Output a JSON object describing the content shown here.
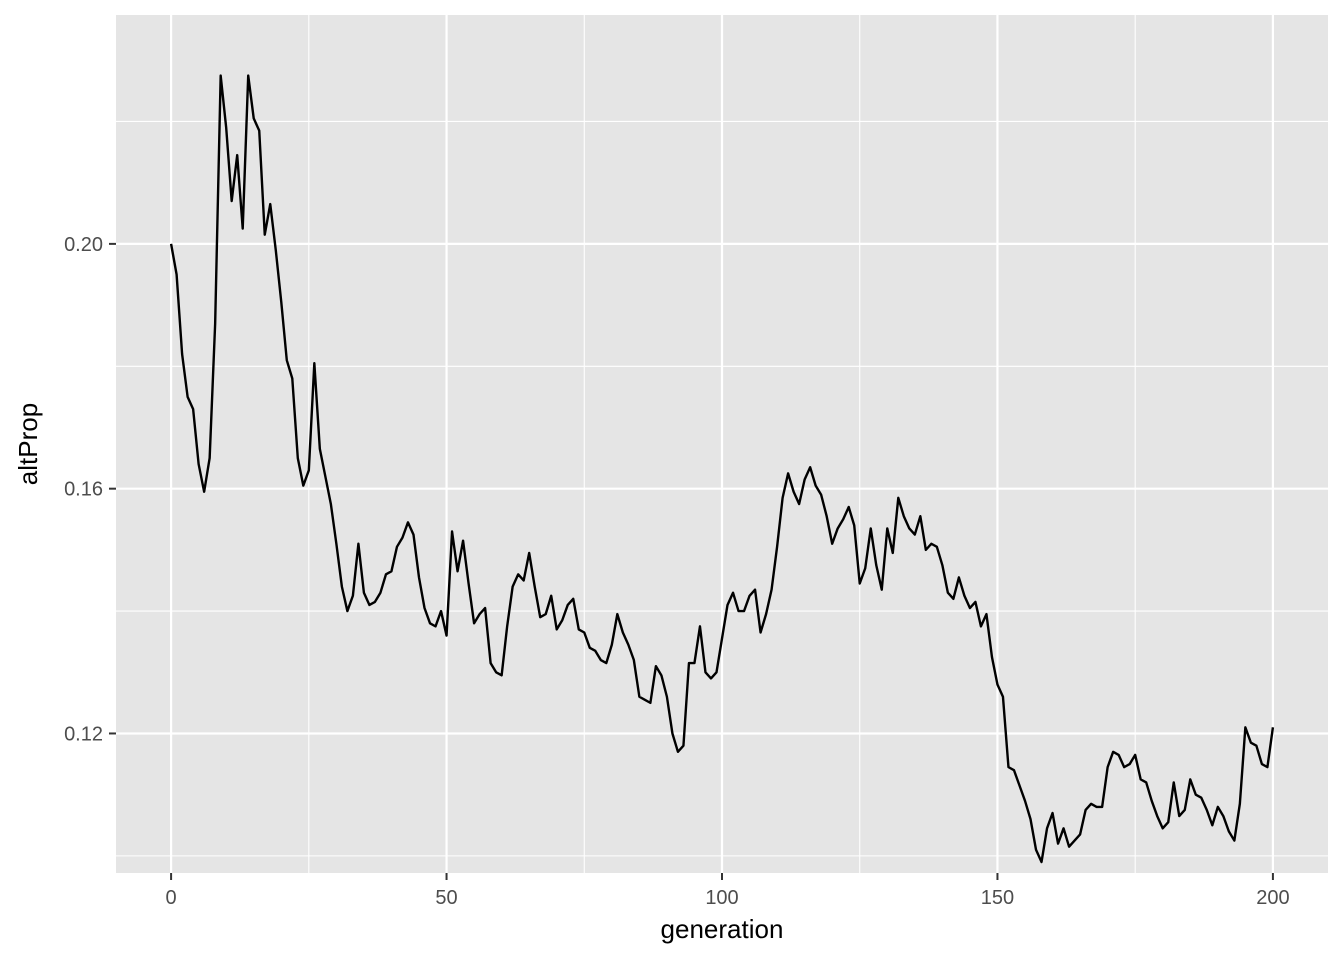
{
  "chart_data": {
    "type": "line",
    "title": "",
    "xlabel": "generation",
    "ylabel": "altProp",
    "xlim": [
      -10,
      210
    ],
    "ylim": [
      0.0972,
      0.2374
    ],
    "x_ticks": [
      0,
      50,
      100,
      150,
      200
    ],
    "x_tick_labels": [
      "0",
      "50",
      "100",
      "150",
      "200"
    ],
    "y_ticks": [
      0.12,
      0.16,
      0.2
    ],
    "y_tick_labels": [
      "0.12",
      "0.16",
      "0.20"
    ],
    "grid": true,
    "legend": "none",
    "colors": {
      "panel": "#e5e5e5",
      "grid": "#ffffff",
      "line": "#000000",
      "tick_text": "#4d4d4d",
      "tick_mark": "#333333"
    },
    "series": [
      {
        "values_x": [
          0,
          1,
          2,
          3,
          4,
          5,
          6,
          7,
          8,
          9,
          10,
          11,
          12,
          13,
          14,
          15,
          16,
          17,
          18,
          19,
          20,
          21,
          22,
          23,
          24,
          25,
          26,
          27,
          28,
          29,
          30,
          31,
          32,
          33,
          34,
          35,
          36,
          37,
          38,
          39,
          40,
          41,
          42,
          43,
          44,
          45,
          46,
          47,
          48,
          49,
          50,
          51,
          52,
          53,
          54,
          55,
          56,
          57,
          58,
          59,
          60,
          61,
          62,
          63,
          64,
          65,
          66,
          67,
          68,
          69,
          70,
          71,
          72,
          73,
          74,
          75,
          76,
          77,
          78,
          79,
          80,
          81,
          82,
          83,
          84,
          85,
          86,
          87,
          88,
          89,
          90,
          91,
          92,
          93,
          94,
          95,
          96,
          97,
          98,
          99,
          100,
          101,
          102,
          103,
          104,
          105,
          106,
          107,
          108,
          109,
          110,
          111,
          112,
          113,
          114,
          115,
          116,
          117,
          118,
          119,
          120,
          121,
          122,
          123,
          124,
          125,
          126,
          127,
          128,
          129,
          130,
          131,
          132,
          133,
          134,
          135,
          136,
          137,
          138,
          139,
          140,
          141,
          142,
          143,
          144,
          145,
          146,
          147,
          148,
          149,
          150,
          151,
          152,
          153,
          154,
          155,
          156,
          157,
          158,
          159,
          160,
          161,
          162,
          163,
          164,
          165,
          166,
          167,
          168,
          169,
          170,
          171,
          172,
          173,
          174,
          175,
          176,
          177,
          178,
          179,
          180,
          181,
          182,
          183,
          184,
          185,
          186,
          187,
          188,
          189,
          190,
          191,
          192,
          193,
          194,
          195,
          196,
          197,
          198,
          199,
          200
        ],
        "values": [
          0.2,
          0.195,
          0.182,
          0.175,
          0.173,
          0.164,
          0.1595,
          0.165,
          0.187,
          0.2275,
          0.219,
          0.207,
          0.2145,
          0.2025,
          0.2275,
          0.2205,
          0.2185,
          0.2015,
          0.2065,
          0.199,
          0.1905,
          0.181,
          0.178,
          0.165,
          0.1605,
          0.163,
          0.1805,
          0.1665,
          0.162,
          0.1575,
          0.151,
          0.144,
          0.14,
          0.1425,
          0.151,
          0.143,
          0.141,
          0.1415,
          0.143,
          0.146,
          0.1465,
          0.1505,
          0.152,
          0.1545,
          0.1525,
          0.1455,
          0.1405,
          0.138,
          0.1375,
          0.14,
          0.136,
          0.153,
          0.1465,
          0.1515,
          0.1445,
          0.138,
          0.1395,
          0.1405,
          0.1315,
          0.13,
          0.1295,
          0.1375,
          0.144,
          0.146,
          0.145,
          0.1495,
          0.144,
          0.139,
          0.1395,
          0.1425,
          0.137,
          0.1385,
          0.141,
          0.142,
          0.137,
          0.1365,
          0.134,
          0.1335,
          0.132,
          0.1315,
          0.1345,
          0.1395,
          0.1365,
          0.1345,
          0.132,
          0.126,
          0.1255,
          0.125,
          0.131,
          0.1295,
          0.126,
          0.12,
          0.117,
          0.118,
          0.1315,
          0.1315,
          0.1375,
          0.13,
          0.129,
          0.13,
          0.1355,
          0.141,
          0.143,
          0.14,
          0.14,
          0.1425,
          0.1435,
          0.1365,
          0.1395,
          0.1435,
          0.1505,
          0.1585,
          0.1625,
          0.1595,
          0.1575,
          0.1615,
          0.1635,
          0.1605,
          0.159,
          0.1555,
          0.151,
          0.1535,
          0.155,
          0.157,
          0.154,
          0.1445,
          0.147,
          0.1535,
          0.1475,
          0.1435,
          0.1535,
          0.1495,
          0.1585,
          0.1555,
          0.1535,
          0.1525,
          0.1555,
          0.15,
          0.151,
          0.1505,
          0.1475,
          0.143,
          0.142,
          0.1455,
          0.1425,
          0.1405,
          0.1415,
          0.1375,
          0.1395,
          0.1325,
          0.128,
          0.126,
          0.1145,
          0.114,
          0.1115,
          0.109,
          0.106,
          0.101,
          0.099,
          0.1045,
          0.107,
          0.102,
          0.1045,
          0.1015,
          0.1025,
          0.1035,
          0.1075,
          0.1085,
          0.108,
          0.108,
          0.1145,
          0.117,
          0.1165,
          0.1145,
          0.115,
          0.1165,
          0.1125,
          0.112,
          0.109,
          0.1065,
          0.1045,
          0.1055,
          0.112,
          0.1065,
          0.1075,
          0.1125,
          0.11,
          0.1095,
          0.1075,
          0.105,
          0.108,
          0.1065,
          0.104,
          0.1025,
          0.1085,
          0.121,
          0.1185,
          0.118,
          0.115,
          0.1145,
          0.121
        ]
      }
    ]
  }
}
